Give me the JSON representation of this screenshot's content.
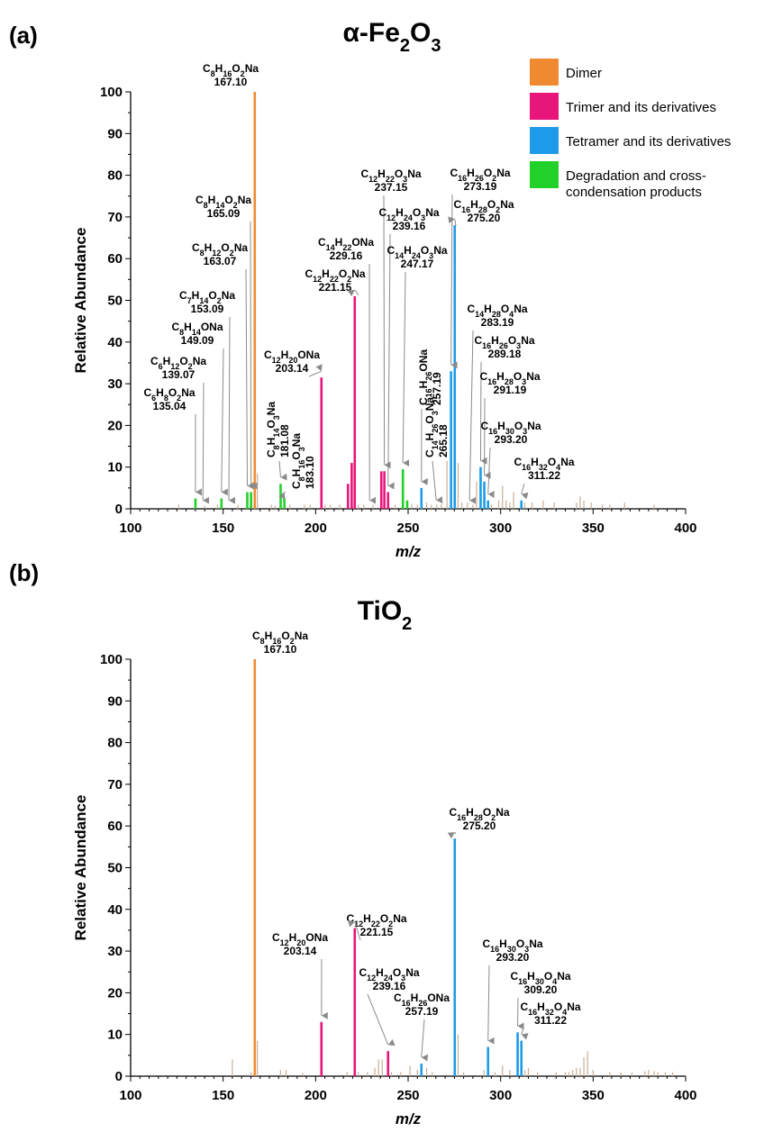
{
  "figure": {
    "legend": [
      {
        "label": "Dimer",
        "color": "#F08A30"
      },
      {
        "label": "Trimer and its derivatives",
        "color": "#E8157A"
      },
      {
        "label": "Tetramer and its derivatives",
        "color": "#1E9BE8"
      },
      {
        "label": "Degradation and cross-",
        "label2": "condensation products",
        "color": "#22D02A"
      }
    ],
    "minor_color": "#C9AE96"
  },
  "chart_data": [
    {
      "type": "bar",
      "panel": "(a)",
      "title": "α-Fe2O3",
      "title_main": "α-Fe",
      "title_sub1": "2",
      "title_mid": "O",
      "title_sub2": "3",
      "xlabel": "m/z",
      "ylabel": "Relative Abundance",
      "xlim": [
        100,
        400
      ],
      "ylim": [
        0,
        100
      ],
      "xticks": [
        100,
        150,
        200,
        250,
        300,
        350,
        400
      ],
      "yticks": [
        0,
        10,
        20,
        30,
        40,
        50,
        60,
        70,
        80,
        90,
        100
      ],
      "series": [
        {
          "name": "Dimer",
          "x": [
            167.1
          ],
          "y": [
            100
          ]
        },
        {
          "name": "Trimer and its derivatives",
          "x": [
            203.14,
            217.5,
            219.5,
            221.15,
            235.5,
            237.15,
            239.16
          ],
          "y": [
            31.5,
            6,
            11,
            51,
            9,
            9,
            4
          ]
        },
        {
          "name": "Tetramer and its derivatives",
          "x": [
            257.19,
            273.19,
            275.2,
            289.18,
            291.19,
            293.2,
            311.22
          ],
          "y": [
            5,
            33,
            68,
            10,
            6.5,
            2,
            2
          ]
        },
        {
          "name": "Degradation and cross-condensation products",
          "x": [
            135.04,
            149.09,
            163.07,
            165.09,
            181.08,
            183.1,
            247.17,
            249.5
          ],
          "y": [
            2.5,
            2.5,
            4,
            4,
            6,
            2.5,
            9.5,
            2
          ]
        }
      ],
      "minor_peaks": {
        "x": [
          126,
          140,
          147,
          158,
          168.5,
          176,
          178,
          186,
          194,
          197,
          205,
          208,
          213,
          223,
          226,
          231,
          243,
          252,
          255,
          260,
          262.5,
          265.5,
          268,
          271,
          277,
          279,
          282,
          285,
          287,
          295,
          299,
          301,
          303,
          305,
          307,
          313,
          317,
          323,
          329,
          341,
          343,
          345,
          349,
          355,
          359,
          367,
          383
        ],
        "y": [
          1,
          0.8,
          1,
          1,
          8.5,
          1,
          0.8,
          1,
          1,
          1,
          1,
          1,
          1,
          1,
          1,
          1,
          1,
          1.2,
          1,
          1.5,
          1,
          1,
          1.2,
          11.5,
          11,
          1.5,
          1.5,
          1,
          6.5,
          1,
          2,
          5.5,
          2,
          1.5,
          4,
          1.5,
          1.5,
          2,
          1.5,
          1.5,
          3,
          2,
          1.5,
          1,
          1,
          1.5,
          1
        ]
      },
      "annotations": [
        {
          "formula": [
            [
              "C",
              "8"
            ],
            [
              "H",
              "16"
            ],
            [
              "O",
              "2"
            ],
            [
              "Na",
              ""
            ]
          ],
          "mass": "167.10",
          "peak_x": 167.1,
          "peak_y": 100
        },
        {
          "formula": [
            [
              "C",
              "8"
            ],
            [
              "H",
              "14"
            ],
            [
              "O",
              "2"
            ],
            [
              "Na",
              ""
            ]
          ],
          "mass": "165.09",
          "peak_x": 165.09,
          "peak_y": 4
        },
        {
          "formula": [
            [
              "C",
              "8"
            ],
            [
              "H",
              "12"
            ],
            [
              "O",
              "2"
            ],
            [
              "Na",
              ""
            ]
          ],
          "mass": "163.07",
          "peak_x": 163.07,
          "peak_y": 4
        },
        {
          "formula": [
            [
              "C",
              "7"
            ],
            [
              "H",
              "14"
            ],
            [
              "O",
              "2"
            ],
            [
              "Na",
              ""
            ]
          ],
          "mass": "153.09",
          "peak_x": 153.09,
          "peak_y": 0.5
        },
        {
          "formula": [
            [
              "C",
              "8"
            ],
            [
              "H",
              "14"
            ],
            [
              "ONa",
              ""
            ]
          ],
          "mass": "149.09",
          "peak_x": 149.09,
          "peak_y": 2.5
        },
        {
          "formula": [
            [
              "C",
              "6"
            ],
            [
              "H",
              "12"
            ],
            [
              "O",
              "2"
            ],
            [
              "Na",
              ""
            ]
          ],
          "mass": "139.07",
          "peak_x": 139.07,
          "peak_y": 0.5
        },
        {
          "formula": [
            [
              "C",
              "6"
            ],
            [
              "H",
              "8"
            ],
            [
              "O",
              "2"
            ],
            [
              "Na",
              ""
            ]
          ],
          "mass": "135.04",
          "peak_x": 135.04,
          "peak_y": 2.5
        },
        {
          "formula": [
            [
              "C",
              "12"
            ],
            [
              "H",
              "20"
            ],
            [
              "ONa",
              ""
            ]
          ],
          "mass": "203.14",
          "peak_x": 203.14,
          "peak_y": 31.5
        },
        {
          "formula": [
            [
              "C",
              "8"
            ],
            [
              "H",
              "14"
            ],
            [
              "O",
              "3"
            ],
            [
              "Na",
              ""
            ]
          ],
          "mass": "181.08",
          "peak_x": 181.08,
          "peak_y": 6,
          "rotated": true
        },
        {
          "formula": [
            [
              "C",
              "8"
            ],
            [
              "H",
              "16"
            ],
            [
              "O",
              "3"
            ],
            [
              "Na",
              ""
            ]
          ],
          "mass": "183.10",
          "peak_x": 183.1,
          "peak_y": 2.5,
          "rotated": true
        },
        {
          "formula": [
            [
              "C",
              "12"
            ],
            [
              "H",
              "22"
            ],
            [
              "O",
              "2"
            ],
            [
              "Na",
              ""
            ]
          ],
          "mass": "221.15",
          "peak_x": 221.15,
          "peak_y": 51
        },
        {
          "formula": [
            [
              "C",
              "14"
            ],
            [
              "H",
              "22"
            ],
            [
              "ONa",
              ""
            ]
          ],
          "mass": "229.16",
          "peak_x": 229.16,
          "peak_y": 0.5
        },
        {
          "formula": [
            [
              "C",
              "12"
            ],
            [
              "H",
              "22"
            ],
            [
              "O",
              "3"
            ],
            [
              "Na",
              ""
            ]
          ],
          "mass": "237.15",
          "peak_x": 237.15,
          "peak_y": 9
        },
        {
          "formula": [
            [
              "C",
              "12"
            ],
            [
              "H",
              "24"
            ],
            [
              "O",
              "3"
            ],
            [
              "Na",
              ""
            ]
          ],
          "mass": "239.16",
          "peak_x": 239.16,
          "peak_y": 4
        },
        {
          "formula": [
            [
              "C",
              "14"
            ],
            [
              "H",
              "24"
            ],
            [
              "O",
              "3"
            ],
            [
              "Na",
              ""
            ]
          ],
          "mass": "247.17",
          "peak_x": 247.17,
          "peak_y": 9.5
        },
        {
          "formula": [
            [
              "C",
              "16"
            ],
            [
              "H",
              "26"
            ],
            [
              "ONa",
              ""
            ]
          ],
          "mass": "257.19",
          "peak_x": 257.19,
          "peak_y": 5,
          "rotated": true
        },
        {
          "formula": [
            [
              "C",
              "14"
            ],
            [
              "H",
              "26"
            ],
            [
              "O",
              "3"
            ],
            [
              "Na",
              ""
            ]
          ],
          "mass": "265.18",
          "peak_x": 265.18,
          "peak_y": 0.5,
          "rotated": true
        },
        {
          "formula": [
            [
              "C",
              "16"
            ],
            [
              "H",
              "26"
            ],
            [
              "O",
              "2"
            ],
            [
              "Na",
              ""
            ]
          ],
          "mass": "273.19",
          "peak_x": 273.19,
          "peak_y": 33
        },
        {
          "formula": [
            [
              "C",
              "16"
            ],
            [
              "H",
              "28"
            ],
            [
              "O",
              "2"
            ],
            [
              "Na",
              ""
            ]
          ],
          "mass": "275.20",
          "peak_x": 275.2,
          "peak_y": 68
        },
        {
          "formula": [
            [
              "C",
              "14"
            ],
            [
              "H",
              "28"
            ],
            [
              "O",
              "4"
            ],
            [
              "Na",
              ""
            ]
          ],
          "mass": "283.19",
          "peak_x": 283.19,
          "peak_y": 0.5
        },
        {
          "formula": [
            [
              "C",
              "16"
            ],
            [
              "H",
              "26"
            ],
            [
              "O",
              "3"
            ],
            [
              "Na",
              ""
            ]
          ],
          "mass": "289.18",
          "peak_x": 289.18,
          "peak_y": 10
        },
        {
          "formula": [
            [
              "C",
              "16"
            ],
            [
              "H",
              "28"
            ],
            [
              "O",
              "3"
            ],
            [
              "Na",
              ""
            ]
          ],
          "mass": "291.19",
          "peak_x": 291.19,
          "peak_y": 6.5
        },
        {
          "formula": [
            [
              "C",
              "16"
            ],
            [
              "H",
              "30"
            ],
            [
              "O",
              "3"
            ],
            [
              "Na",
              ""
            ]
          ],
          "mass": "293.20",
          "peak_x": 293.2,
          "peak_y": 2
        },
        {
          "formula": [
            [
              "C",
              "16"
            ],
            [
              "H",
              "32"
            ],
            [
              "O",
              "4"
            ],
            [
              "Na",
              ""
            ]
          ],
          "mass": "311.22",
          "peak_x": 311.22,
          "peak_y": 2
        }
      ]
    },
    {
      "type": "bar",
      "panel": "(b)",
      "title": "TiO2",
      "title_main": "TiO",
      "title_sub1": "2",
      "xlabel": "m/z",
      "ylabel": "Relative Abundance",
      "xlim": [
        100,
        400
      ],
      "ylim": [
        0,
        100
      ],
      "xticks": [
        100,
        150,
        200,
        250,
        300,
        350,
        400
      ],
      "yticks": [
        0,
        10,
        20,
        30,
        40,
        50,
        60,
        70,
        80,
        90,
        100
      ],
      "series": [
        {
          "name": "Dimer",
          "x": [
            167.1
          ],
          "y": [
            100
          ]
        },
        {
          "name": "Trimer and its derivatives",
          "x": [
            203.14,
            221.15,
            239.16
          ],
          "y": [
            13,
            35.5,
            6
          ]
        },
        {
          "name": "Tetramer and its derivatives",
          "x": [
            257.19,
            275.2,
            293.2,
            309.2,
            311.22
          ],
          "y": [
            3,
            57,
            7,
            10.5,
            8.5
          ]
        }
      ],
      "minor_peaks": {
        "x": [
          155,
          165,
          168.5,
          181,
          184,
          193,
          217,
          223,
          228,
          232,
          234,
          236,
          241,
          246,
          251,
          255,
          260,
          263,
          277,
          280,
          291,
          297,
          301,
          305,
          313,
          315,
          320,
          330,
          335,
          337,
          339,
          341,
          343,
          345,
          347,
          350,
          359,
          365,
          371,
          378,
          380,
          383,
          385,
          389,
          393
        ],
        "y": [
          4,
          1,
          8.5,
          1.5,
          1.5,
          0.8,
          1,
          1,
          1,
          2,
          4,
          4,
          1,
          1,
          2.5,
          1.5,
          2,
          1,
          10,
          1,
          1.5,
          1,
          2.5,
          1.5,
          1.5,
          2,
          1,
          1,
          1,
          1,
          1.5,
          2,
          2,
          4.5,
          6,
          1.5,
          1,
          1,
          1,
          1.2,
          1.5,
          1.2,
          1,
          1,
          1
        ]
      },
      "annotations": [
        {
          "formula": [
            [
              "C",
              "8"
            ],
            [
              "H",
              "16"
            ],
            [
              "O",
              "2"
            ],
            [
              "Na",
              ""
            ]
          ],
          "mass": "167.10",
          "peak_x": 167.1,
          "peak_y": 100
        },
        {
          "formula": [
            [
              "C",
              "12"
            ],
            [
              "H",
              "20"
            ],
            [
              "ONa",
              ""
            ]
          ],
          "mass": "203.14",
          "peak_x": 203.14,
          "peak_y": 13
        },
        {
          "formula": [
            [
              "C",
              "12"
            ],
            [
              "H",
              "22"
            ],
            [
              "O",
              "2"
            ],
            [
              "Na",
              ""
            ]
          ],
          "mass": "221.15",
          "peak_x": 221.15,
          "peak_y": 35.5
        },
        {
          "formula": [
            [
              "C",
              "12"
            ],
            [
              "H",
              "24"
            ],
            [
              "O",
              "3"
            ],
            [
              "Na",
              ""
            ]
          ],
          "mass": "239.16",
          "peak_x": 239.16,
          "peak_y": 6
        },
        {
          "formula": [
            [
              "C",
              "16"
            ],
            [
              "H",
              "26"
            ],
            [
              "ONa",
              ""
            ]
          ],
          "mass": "257.19",
          "peak_x": 257.19,
          "peak_y": 3
        },
        {
          "formula": [
            [
              "C",
              "16"
            ],
            [
              "H",
              "28"
            ],
            [
              "O",
              "2"
            ],
            [
              "Na",
              ""
            ]
          ],
          "mass": "275.20",
          "peak_x": 275.2,
          "peak_y": 57
        },
        {
          "formula": [
            [
              "C",
              "16"
            ],
            [
              "H",
              "30"
            ],
            [
              "O",
              "3"
            ],
            [
              "Na",
              ""
            ]
          ],
          "mass": "293.20",
          "peak_x": 293.2,
          "peak_y": 7
        },
        {
          "formula": [
            [
              "C",
              "16"
            ],
            [
              "H",
              "30"
            ],
            [
              "O",
              "4"
            ],
            [
              "Na",
              ""
            ]
          ],
          "mass": "309.20",
          "peak_x": 309.2,
          "peak_y": 10.5
        },
        {
          "formula": [
            [
              "C",
              "16"
            ],
            [
              "H",
              "32"
            ],
            [
              "O",
              "4"
            ],
            [
              "Na",
              ""
            ]
          ],
          "mass": "311.22",
          "peak_x": 311.22,
          "peak_y": 8.5
        }
      ]
    }
  ]
}
